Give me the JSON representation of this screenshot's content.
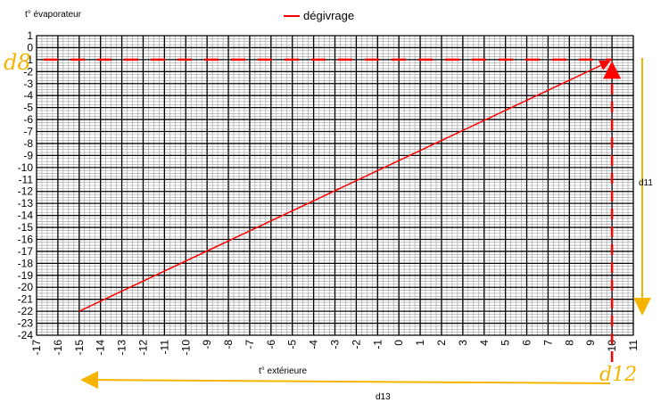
{
  "chart_data": {
    "type": "line",
    "ylabel": "t° évaporateur",
    "xlabel": "t° extérieure",
    "legend": {
      "label": "dégivrage",
      "placement": "top",
      "color": "#ff0000"
    },
    "xlim": [
      -17,
      11
    ],
    "ylim": [
      -24,
      1
    ],
    "x_ticks": [
      -17,
      -16,
      -15,
      -14,
      -13,
      -12,
      -11,
      -10,
      -9,
      -8,
      -7,
      -6,
      -5,
      -4,
      -3,
      -2,
      -1,
      0,
      1,
      2,
      3,
      4,
      5,
      6,
      7,
      8,
      9,
      10,
      11
    ],
    "y_ticks": [
      1,
      0,
      -1,
      -2,
      -3,
      -4,
      -5,
      -6,
      -7,
      -8,
      -9,
      -10,
      -11,
      -12,
      -13,
      -14,
      -15,
      -16,
      -17,
      -18,
      -19,
      -20,
      -21,
      -22,
      -23,
      -24
    ],
    "grid": true,
    "series": [
      {
        "name": "dégivrage",
        "color": "#ff0000",
        "x": [
          -15,
          10
        ],
        "y": [
          -22,
          -1
        ]
      }
    ],
    "annotations": {
      "d8": {
        "label": "d8",
        "y": -1,
        "x_from": -17,
        "x_to": 10,
        "color": "#ff0000",
        "style": "dashed"
      },
      "d12": {
        "label": "d12",
        "x": 10,
        "y_from": -24,
        "y_to": -1,
        "color": "#ff0000",
        "style": "dashed"
      },
      "d11": {
        "label": "d11",
        "color": "#f5b400"
      },
      "d13": {
        "label": "d13",
        "color": "#f5b400"
      }
    }
  }
}
